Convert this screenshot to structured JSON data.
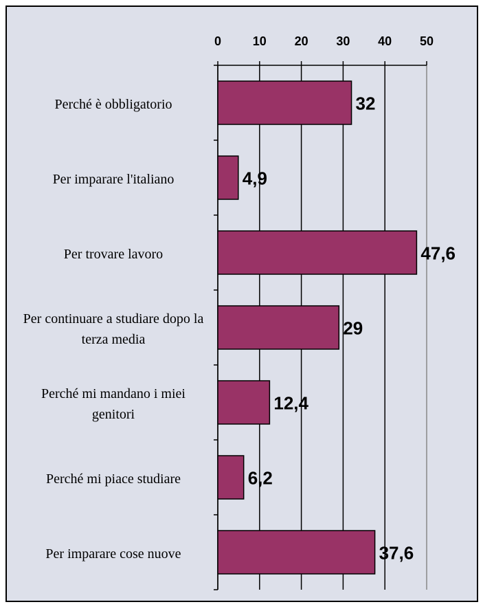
{
  "chart_data": {
    "type": "barh",
    "categories": [
      "Perché è obbligatorio",
      "Per imparare l'italiano",
      "Per trovare lavoro",
      "Per continuare a studiare dopo la terza media",
      "Perché mi mandano i miei genitori",
      "Perché mi piace studiare",
      "Per imparare cose nuove"
    ],
    "values": [
      32,
      4.9,
      47.6,
      29,
      12.4,
      6.2,
      37.6
    ],
    "value_labels": [
      "32",
      "4,9",
      "47,6",
      "29",
      "12,4",
      "6,2",
      "37,6"
    ],
    "color": "#993366",
    "xlim": [
      0,
      50
    ],
    "xticks": [
      0,
      10,
      20,
      30,
      40,
      50
    ],
    "grid": true
  }
}
